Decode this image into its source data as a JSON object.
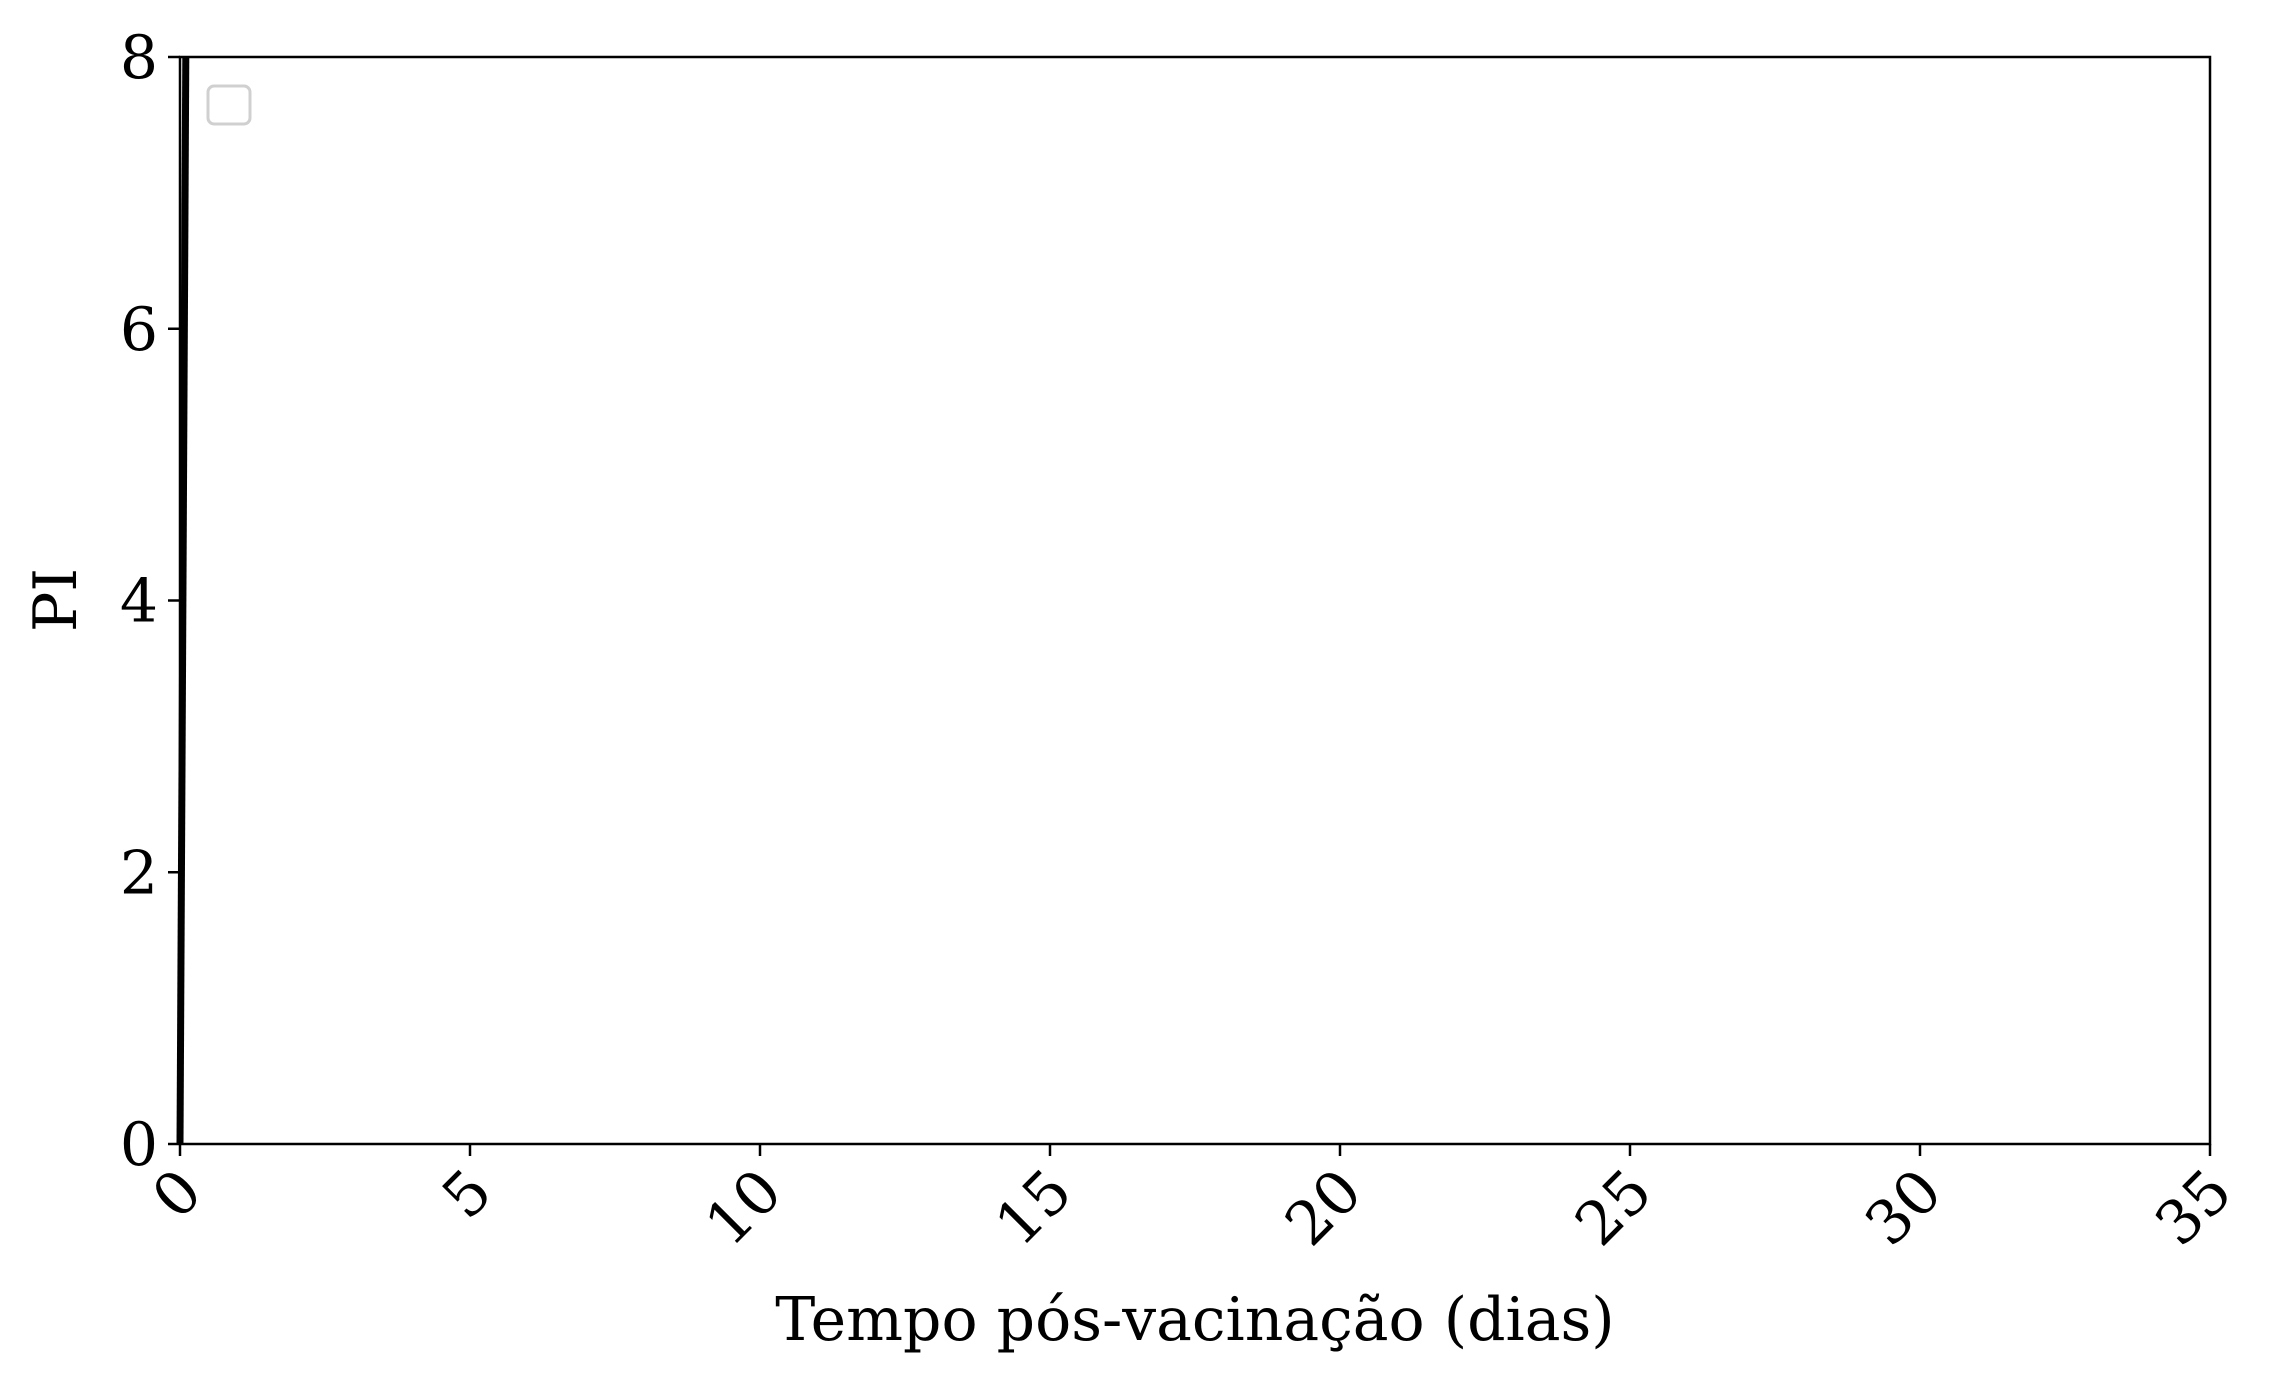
{
  "chart_data": {
    "type": "line",
    "title": "",
    "xlabel": "Tempo pós-vacinação (dias)",
    "ylabel": "PI",
    "xlim": [
      0,
      35
    ],
    "ylim": [
      0,
      8
    ],
    "xticks": [
      0,
      5,
      10,
      15,
      20,
      25,
      30,
      35
    ],
    "yticks": [
      0,
      2,
      4,
      6,
      8
    ],
    "xtick_labels": [
      "0",
      "5",
      "10",
      "15",
      "20",
      "25",
      "30",
      "35"
    ],
    "ytick_labels": [
      "0",
      "2",
      "4",
      "6",
      "8"
    ],
    "xtick_rotation_deg": 45,
    "grid": false,
    "legend": {
      "location": "top-left",
      "entries": []
    },
    "series": [
      {
        "color": "#000000",
        "x": [
          0,
          0.1
        ],
        "y": [
          0,
          8
        ]
      }
    ]
  }
}
